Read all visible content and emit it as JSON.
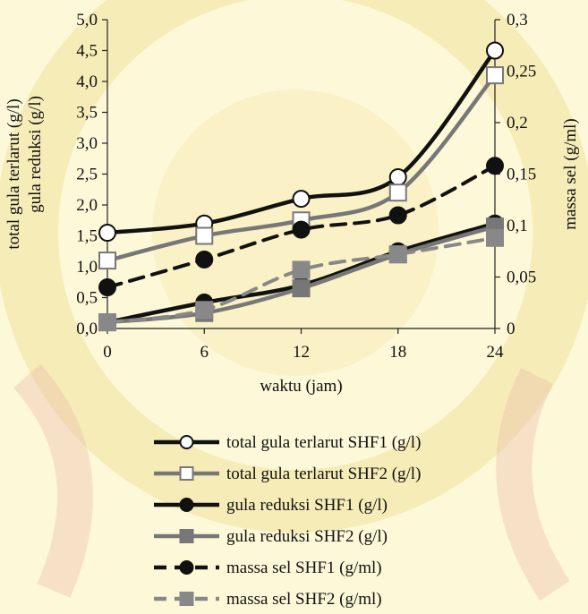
{
  "chart_data": {
    "type": "line",
    "x": [
      0,
      6,
      12,
      18,
      24
    ],
    "xticks": [
      "0",
      "6",
      "12",
      "18",
      "24"
    ],
    "xlabel": "waktu (jam)",
    "ylabel_left": [
      "total gula terlarut (g/l)",
      "gula reduksi (g/l)"
    ],
    "ylabel_right": "massa sel (g/ml)",
    "ylim_left": [
      0,
      5
    ],
    "ylim_right": [
      0,
      0.3
    ],
    "yticks_left": [
      "0,0",
      "0,5",
      "1,0",
      "1,5",
      "2,0",
      "2,5",
      "3,0",
      "3,5",
      "4,0",
      "4,5",
      "5,0"
    ],
    "yticks_right": [
      "0",
      "0,05",
      "0,1",
      "0,15",
      "0,2",
      "0,25",
      "0,3"
    ],
    "grid": false,
    "legend_position": "bottom",
    "series": [
      {
        "name": "total gula terlarut SHF1 (g/l)",
        "axis": "left",
        "color": "#111111",
        "marker": "circle-open",
        "dash": false,
        "values": [
          1.55,
          1.7,
          2.1,
          2.45,
          4.5
        ]
      },
      {
        "name": "total gula terlarut SHF2 (g/l)",
        "axis": "left",
        "color": "#777777",
        "marker": "square-open",
        "dash": false,
        "values": [
          1.1,
          1.5,
          1.75,
          2.2,
          4.1
        ]
      },
      {
        "name": "gula reduksi SHF1 (g/l)",
        "axis": "left",
        "color": "#111111",
        "marker": "circle-filled",
        "dash": false,
        "values": [
          0.1,
          0.42,
          0.7,
          1.25,
          1.7
        ]
      },
      {
        "name": "gula reduksi SHF2 (g/l)",
        "axis": "left",
        "color": "#777777",
        "marker": "square-filled",
        "dash": false,
        "values": [
          0.1,
          0.25,
          0.65,
          1.2,
          1.65
        ]
      },
      {
        "name": "massa sel SHF1 (g/ml)",
        "axis": "right",
        "color": "#111111",
        "marker": "circle-filled",
        "dash": true,
        "values": [
          0.04,
          0.067,
          0.096,
          0.11,
          0.158
        ]
      },
      {
        "name": "massa sel SHF2 (g/ml)",
        "axis": "right",
        "color": "#888888",
        "marker": "square-filled",
        "dash": true,
        "values": [
          0.006,
          0.018,
          0.057,
          0.072,
          0.088
        ]
      }
    ]
  }
}
